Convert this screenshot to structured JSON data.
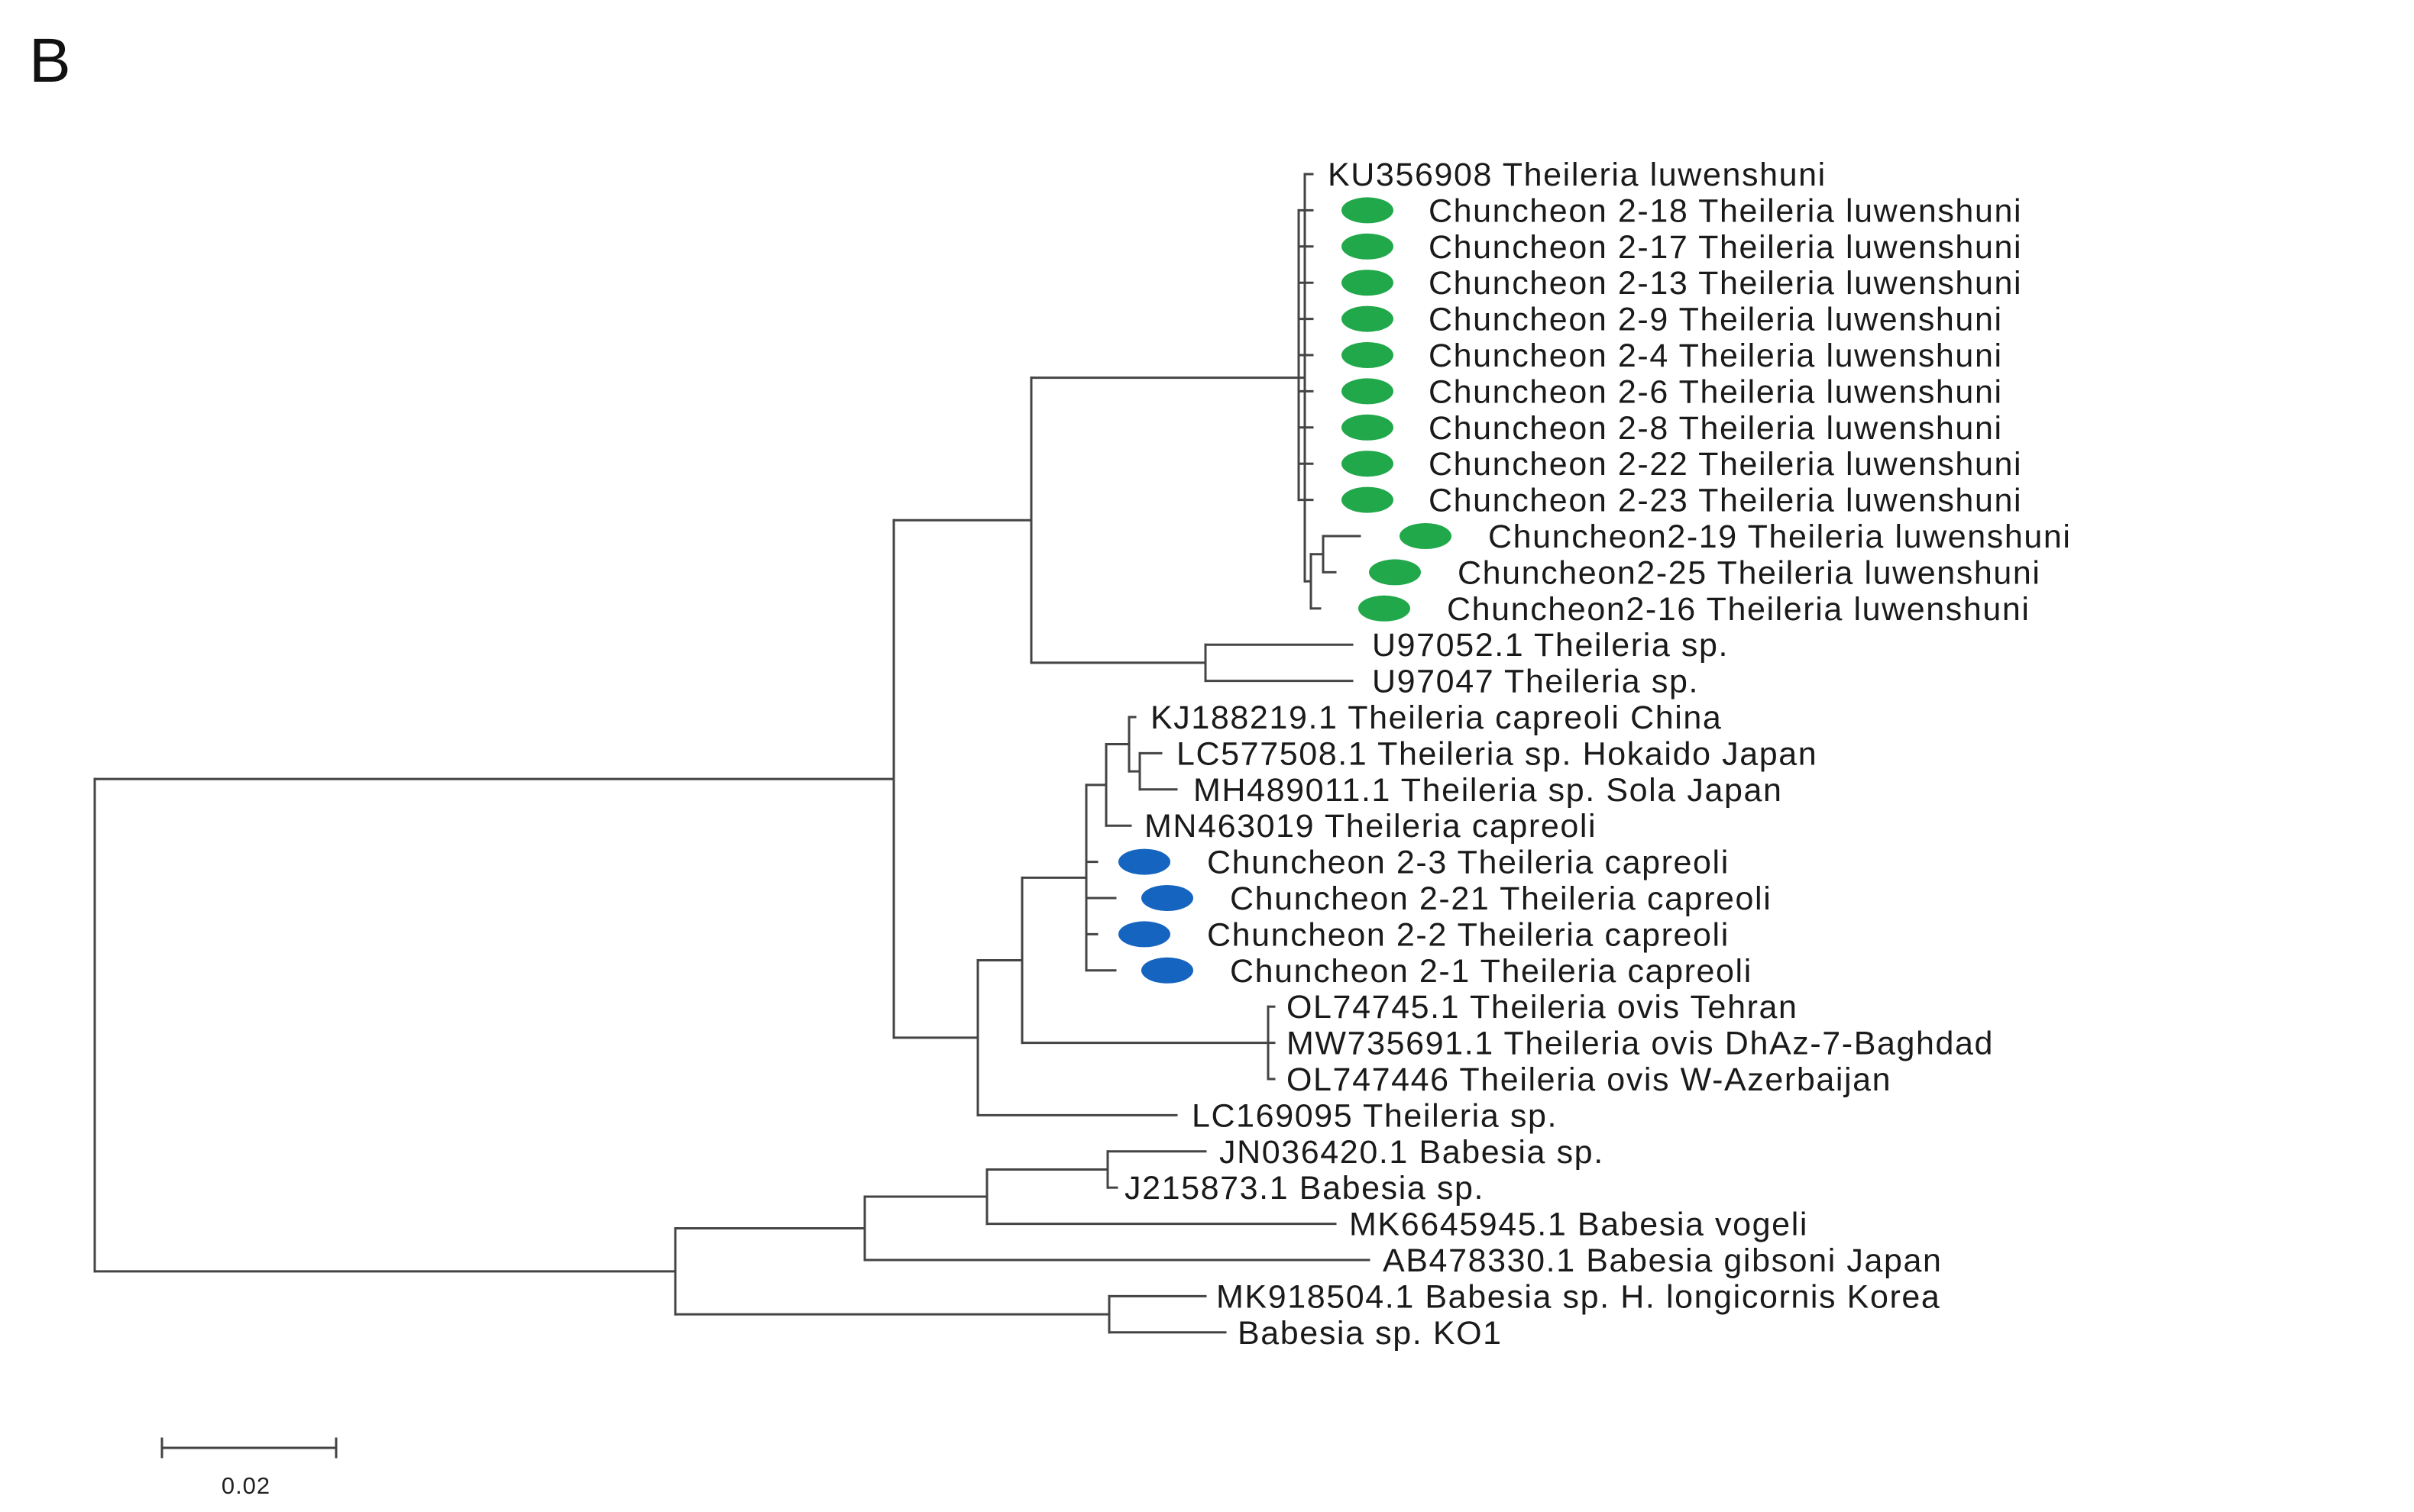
{
  "figure": {
    "panel_label": "B",
    "scale_bar_label": "0.02",
    "marker_colors": {
      "green": "#21a84a",
      "blue": "#1565c0"
    }
  },
  "tree": {
    "leaves": [
      {
        "label": "KU356908 Theileria luwenshuni",
        "marker": null
      },
      {
        "label": "Chuncheon 2-18 Theileria luwenshuni",
        "marker": "green"
      },
      {
        "label": "Chuncheon 2-17 Theileria luwenshuni",
        "marker": "green"
      },
      {
        "label": "Chuncheon 2-13 Theileria luwenshuni",
        "marker": "green"
      },
      {
        "label": "Chuncheon 2-9 Theileria luwenshuni",
        "marker": "green"
      },
      {
        "label": "Chuncheon 2-4 Theileria luwenshuni",
        "marker": "green"
      },
      {
        "label": "Chuncheon 2-6 Theileria luwenshuni",
        "marker": "green"
      },
      {
        "label": "Chuncheon 2-8 Theileria luwenshuni",
        "marker": "green"
      },
      {
        "label": "Chuncheon 2-22 Theileria luwenshuni",
        "marker": "green"
      },
      {
        "label": "Chuncheon 2-23 Theileria luwenshuni",
        "marker": "green"
      },
      {
        "label": "Chuncheon2-19 Theileria luwenshuni",
        "marker": "green"
      },
      {
        "label": "Chuncheon2-25 Theileria luwenshuni",
        "marker": "green"
      },
      {
        "label": "Chuncheon2-16 Theileria luwenshuni",
        "marker": "green"
      },
      {
        "label": "U97052.1 Theileria sp.",
        "marker": null
      },
      {
        "label": "U97047 Theileria sp.",
        "marker": null
      },
      {
        "label": "KJ188219.1 Theileria capreoli China",
        "marker": null
      },
      {
        "label": "LC577508.1 Theileria sp. Hokaido Japan",
        "marker": null
      },
      {
        "label": "MH489011.1 Theileria sp. Sola Japan",
        "marker": null
      },
      {
        "label": "MN463019 Theileria capreoli",
        "marker": null
      },
      {
        "label": "Chuncheon 2-3 Theileria capreoli",
        "marker": "blue"
      },
      {
        "label": "Chuncheon 2-21 Theileria capreoli",
        "marker": "blue"
      },
      {
        "label": "Chuncheon 2-2 Theileria capreoli",
        "marker": "blue"
      },
      {
        "label": "Chuncheon 2-1 Theileria capreoli",
        "marker": "blue"
      },
      {
        "label": "OL74745.1 Theileria ovis Tehran",
        "marker": null
      },
      {
        "label": "MW735691.1 Theileria ovis DhAz-7-Baghdad",
        "marker": null
      },
      {
        "label": "OL747446 Theileria ovis W-Azerbaijan",
        "marker": null
      },
      {
        "label": "LC169095 Theileria sp.",
        "marker": null
      },
      {
        "label": "JN036420.1 Babesia sp.",
        "marker": null
      },
      {
        "label": "J215873.1 Babesia sp.",
        "marker": null
      },
      {
        "label": "MK6645945.1 Babesia vogeli",
        "marker": null
      },
      {
        "label": "AB478330.1 Babesia gibsoni Japan",
        "marker": null
      },
      {
        "label": "MK918504.1 Babesia sp. H. longicornis Korea",
        "marker": null
      },
      {
        "label": "Babesia sp. KO1",
        "marker": null
      }
    ]
  }
}
